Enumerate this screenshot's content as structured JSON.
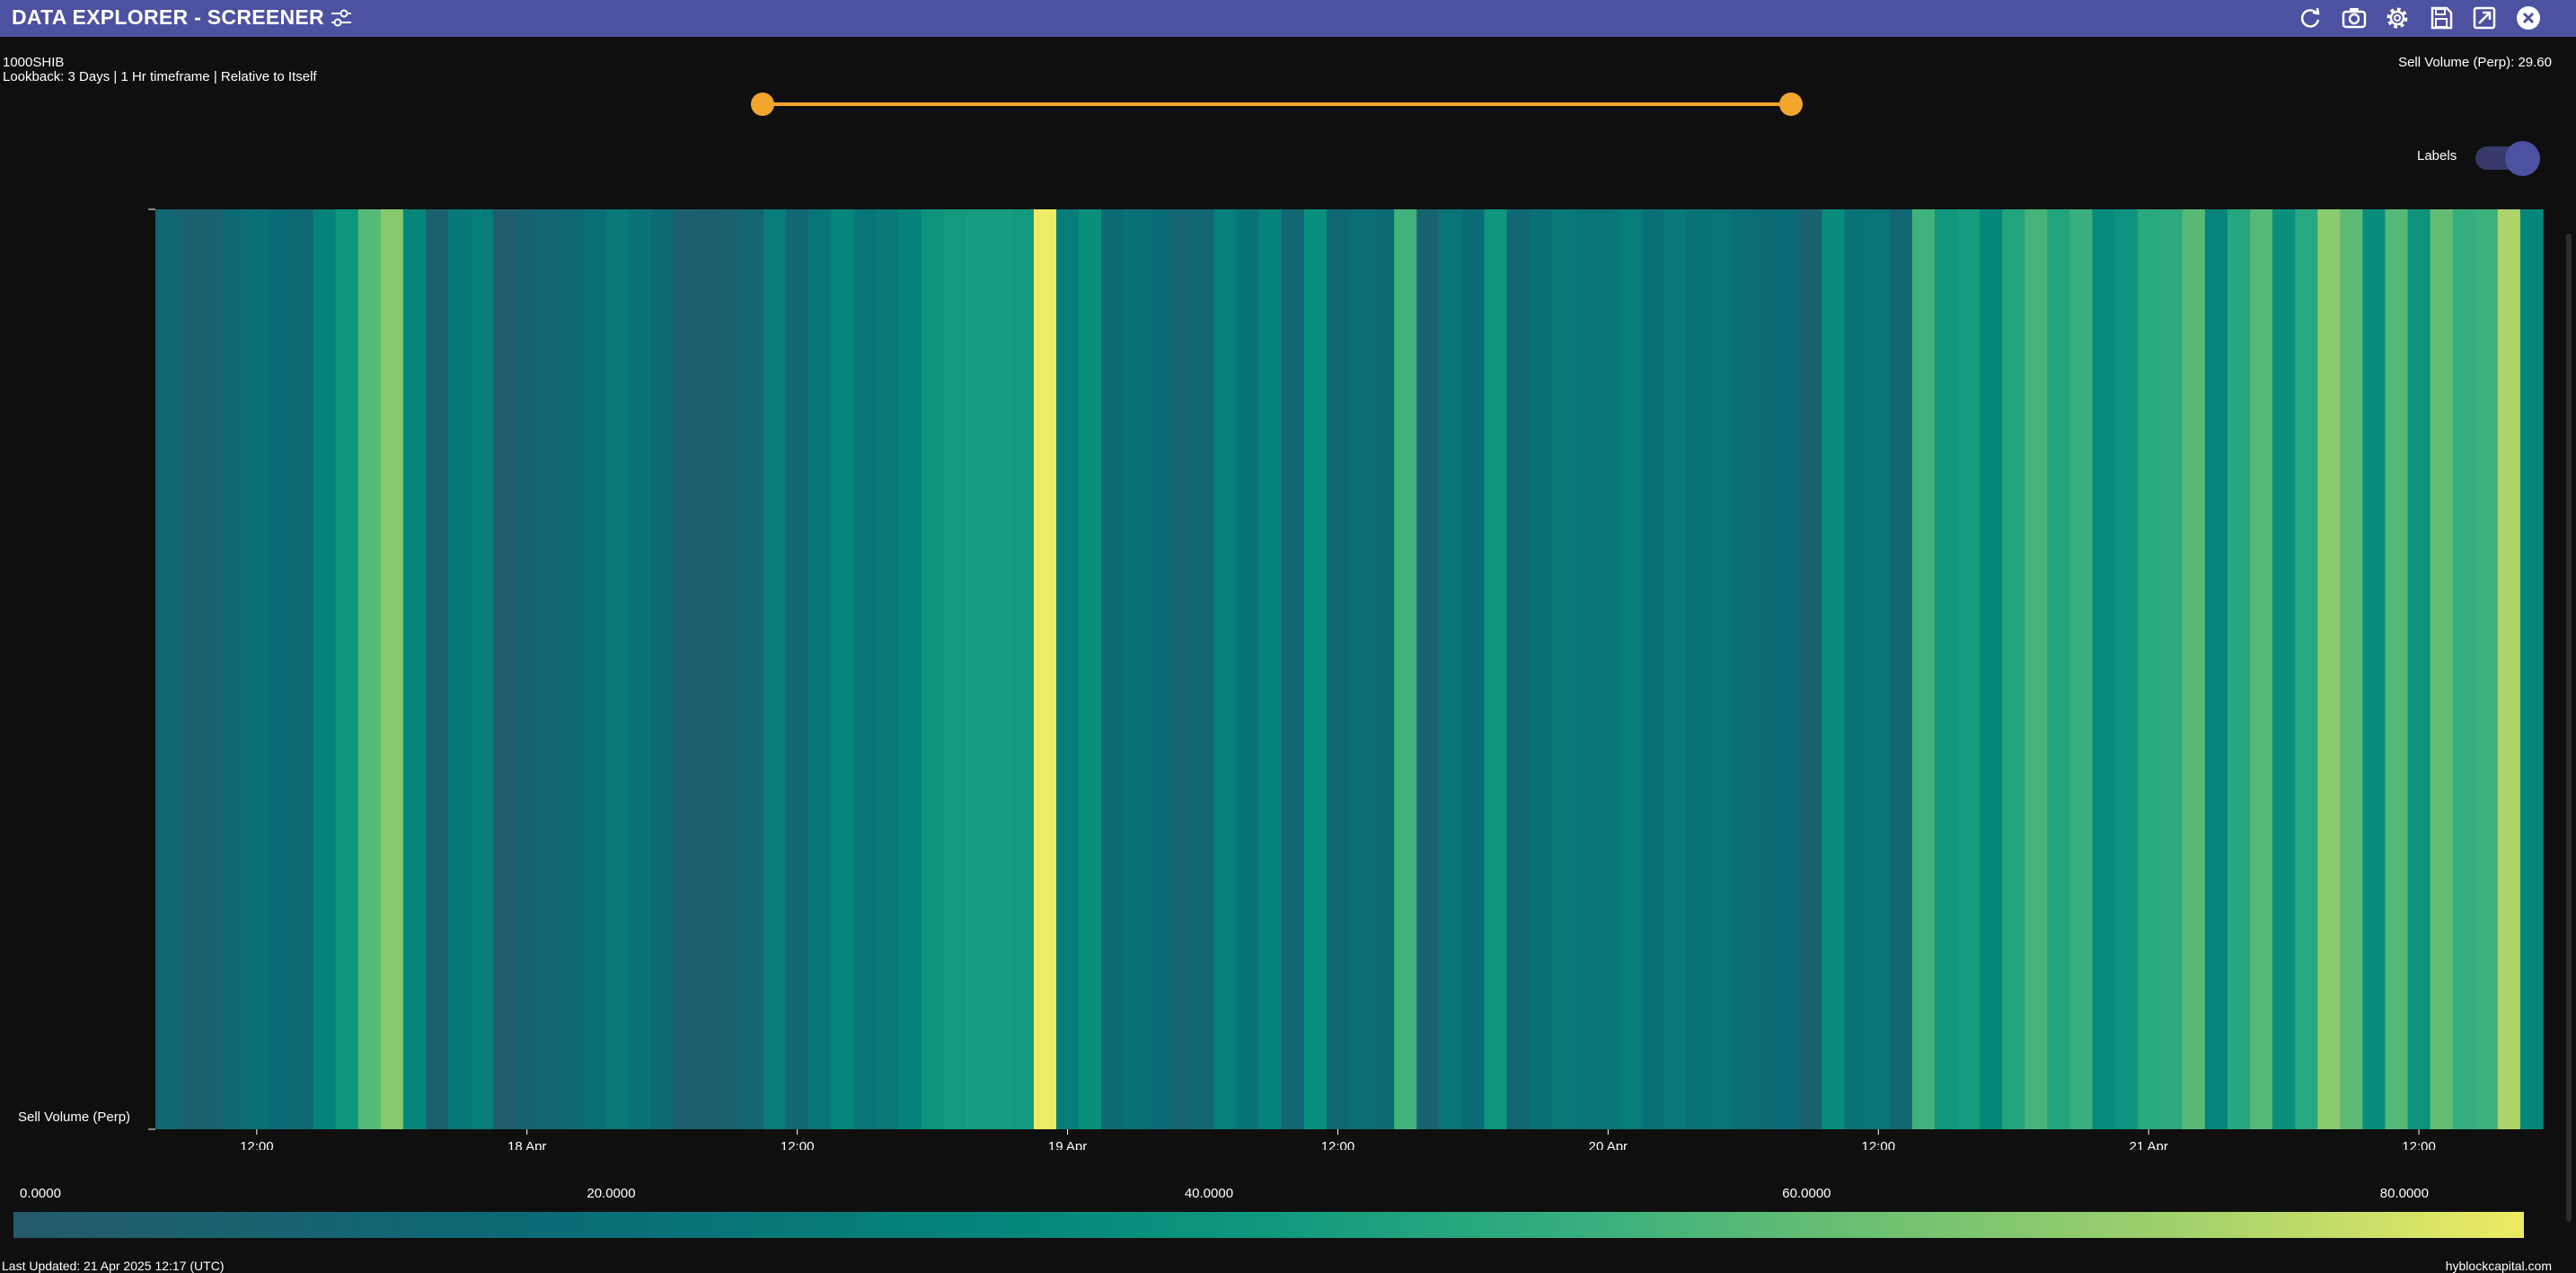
{
  "window": {
    "title": "DATA EXPLORER - SCREENER",
    "icons": [
      "filter-sliders-icon",
      "refresh-icon",
      "camera-icon",
      "gear-icon",
      "save-icon",
      "export-icon",
      "close-icon"
    ]
  },
  "header": {
    "symbol": "1000SHIB",
    "subtitle": "Lookback: 3 Days | 1 Hr timeframe | Relative to Itself",
    "readout": "Sell Volume (Perp): 29.60"
  },
  "controls": {
    "labels_toggle_label": "Labels",
    "labels_toggle_on": true,
    "range_slider": {
      "start": 0.0,
      "end": 1.0
    }
  },
  "chart_data": {
    "type": "heatmap",
    "row_label": "Sell Volume (Perp)",
    "x_tick_labels": [
      "12:00",
      "18 Apr",
      "12:00",
      "19 Apr",
      "12:00",
      "20 Apr",
      "12:00",
      "21 Apr",
      "12:00"
    ],
    "x_first_hour_index": 0,
    "values": [
      9,
      5,
      5,
      11,
      14,
      12,
      10,
      22,
      34,
      56,
      67,
      25,
      4,
      17,
      20,
      2,
      6,
      8,
      10,
      13,
      18,
      15,
      11,
      4,
      3,
      5,
      7,
      20,
      9,
      16,
      24,
      16,
      18,
      22,
      32,
      37,
      38,
      38,
      37,
      94,
      20,
      30,
      11,
      14,
      12,
      7,
      9,
      21,
      15,
      22,
      8,
      30,
      10,
      13,
      11,
      51,
      6,
      16,
      12,
      34,
      8,
      14,
      18,
      16,
      16,
      20,
      14,
      18,
      15,
      16,
      13,
      11,
      12,
      5,
      28,
      15,
      16,
      8,
      51,
      36,
      38,
      24,
      42,
      52,
      42,
      49,
      27,
      32,
      44,
      45,
      57,
      23,
      43,
      56,
      30,
      44,
      68,
      58,
      28,
      56,
      32,
      60,
      48,
      50,
      74,
      25
    ],
    "colorbar": {
      "min": 0,
      "max": 84,
      "tick_labels": [
        "0.0000",
        "20.0000",
        "40.0000",
        "60.0000",
        "80.0000"
      ],
      "tick_values": [
        0,
        20,
        40,
        60,
        80
      ],
      "colors": [
        "#255a6c",
        "#0a6c76",
        "#04867b",
        "#10987e",
        "#35ae7e",
        "#64bd73",
        "#a0d06c",
        "#eeeb64"
      ]
    }
  },
  "footer": {
    "last_updated": "Last Updated: 21 Apr 2025 12:17 (UTC)",
    "source": "hyblockcapital.com"
  }
}
